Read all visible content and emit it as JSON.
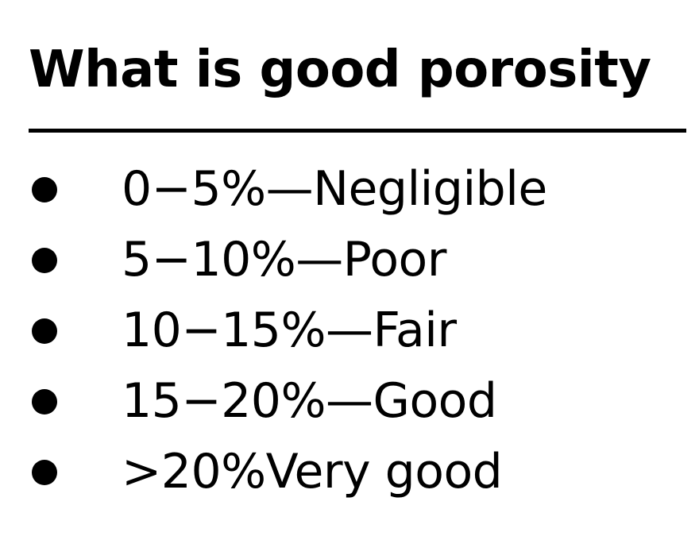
{
  "slide": {
    "title": "What is good porosity",
    "items": [
      {
        "text": "0−5%—Negligible"
      },
      {
        "text": "5−10%—Poor"
      },
      {
        "text": "10−15%—Fair"
      },
      {
        "text": "15−20%—Good"
      },
      {
        "text": ">20%Very good"
      }
    ]
  }
}
